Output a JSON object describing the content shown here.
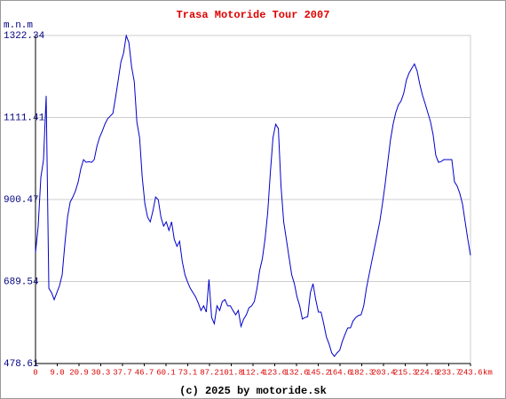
{
  "chart_data": {
    "type": "line",
    "title": "Trasa Motoride Tour 2007",
    "y_label": "m.n.m",
    "x_unit": "km",
    "footer": "(c) 2025 by motoride.sk",
    "ylim": [
      478.61,
      1322.34
    ],
    "yticks": [
      478.61,
      689.54,
      900.47,
      1111.41,
      1322.34
    ],
    "grid": true,
    "xticks": [
      0,
      {
        "value": 9,
        "label": "9.0"
      },
      20.9,
      30.3,
      37.7,
      46.7,
      60.1,
      73.1,
      87.2,
      101.8,
      112.4,
      123.6,
      132.6,
      145.2,
      164.6,
      182.3,
      203.4,
      215.3,
      224.9,
      233.7,
      243.6
    ],
    "series": [
      {
        "color": "#0000cc",
        "values": [
          764,
          832,
          957,
          1003,
          1167,
          672,
          661,
          643,
          661,
          679,
          707,
          786,
          855,
          894,
          907,
          923,
          946,
          980,
          1003,
          996,
          998,
          996,
          1003,
          1037,
          1060,
          1076,
          1094,
          1108,
          1115,
          1122,
          1163,
          1208,
          1254,
          1277,
          1322,
          1304,
          1242,
          1204,
          1099,
          1060,
          957,
          889,
          855,
          843,
          871,
          907,
          900,
          855,
          832,
          843,
          821,
          843,
          798,
          780,
          793,
          741,
          707,
          688,
          672,
          661,
          650,
          634,
          615,
          627,
          611,
          695,
          597,
          581,
          627,
          615,
          638,
          643,
          627,
          627,
          615,
          604,
          615,
          574,
          593,
          604,
          622,
          627,
          638,
          672,
          718,
          748,
          798,
          866,
          969,
          1060,
          1094,
          1083,
          935,
          843,
          798,
          752,
          707,
          684,
          650,
          627,
          593,
          597,
          599,
          661,
          684,
          643,
          611,
          611,
          581,
          547,
          529,
          506,
          497,
          506,
          513,
          536,
          554,
          570,
          570,
          588,
          597,
          602,
          604,
          627,
          672,
          707,
          741,
          775,
          809,
          843,
          889,
          939,
          996,
          1053,
          1094,
          1124,
          1144,
          1154,
          1174,
          1208,
          1226,
          1238,
          1249,
          1231,
          1197,
          1169,
          1147,
          1124,
          1101,
          1067,
          1014,
          996,
          998,
          1003,
          1003,
          1003,
          1003,
          946,
          935,
          916,
          889,
          843,
          798,
          757
        ]
      }
    ]
  }
}
